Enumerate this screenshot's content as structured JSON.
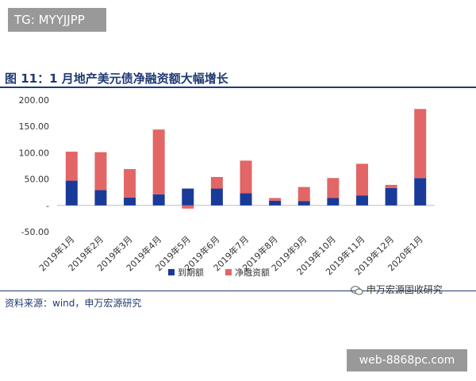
{
  "header": {
    "tg_label": "TG: MYYJJPP"
  },
  "figure": {
    "title": "图 11：1 月地产美元债净融资额大幅增长"
  },
  "footer": {
    "source": "资料来源：wind，申万宏源研究",
    "watermark": "申万宏源固收研究",
    "site_badge": "web-8868pc.com"
  },
  "colors": {
    "maturity": "#1a3a9a",
    "net_financing": "#e26666",
    "title": "#1f3a73"
  },
  "chart_data": {
    "type": "bar",
    "stacked": true,
    "categories": [
      "2019年1月",
      "2019年2月",
      "2019年3月",
      "2019年4月",
      "2019年5月",
      "2019年6月",
      "2019年7月",
      "2019年8月",
      "2019年9月",
      "2019年10月",
      "2019年11月",
      "2019年12月",
      "2020年1月"
    ],
    "series": [
      {
        "name": "到期额",
        "values": [
          47,
          29,
          15,
          21,
          32,
          32,
          23,
          9,
          8,
          14,
          19,
          33,
          52
        ]
      },
      {
        "name": "净融资额",
        "values": [
          55,
          72,
          54,
          123,
          -6,
          22,
          62,
          5,
          27,
          38,
          60,
          6,
          131
        ]
      }
    ],
    "ylim": [
      -50,
      200
    ],
    "yticks": [
      "200.00",
      "150.00",
      "100.00",
      "50.00",
      "-",
      "-50.00"
    ],
    "legend": "bottom-center",
    "grid": false
  }
}
